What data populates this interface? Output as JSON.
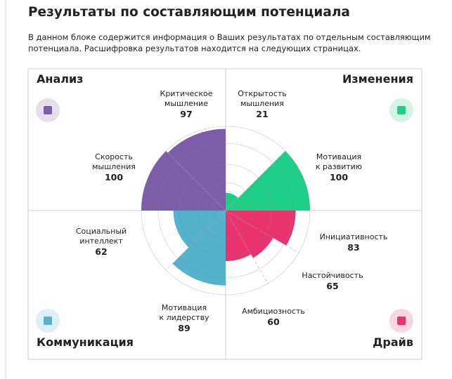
{
  "header": {
    "title": "Результаты по составляющим потенциала",
    "description": [
      "В данном блоке содержится информация о Ваших результатах по отдельным составляющим",
      "потенциала. Расшифровка результатов находится на следующих страницах."
    ]
  },
  "chart_data": {
    "type": "polar-area",
    "rlim": [
      0,
      100
    ],
    "groups": [
      {
        "name": "Изменения",
        "color": "#1fcf87",
        "items": [
          {
            "label": [
              "Открытость",
              "мышления"
            ],
            "value": 21
          },
          {
            "label": [
              "Мотивация",
              "к развитию"
            ],
            "value": 100
          }
        ]
      },
      {
        "name": "Драйв",
        "color": "#e8336f",
        "items": [
          {
            "label": [
              "Инициативность"
            ],
            "value": 83
          },
          {
            "label": [
              "Настойчивость"
            ],
            "value": 65
          },
          {
            "label": [
              "Амбициозность"
            ],
            "value": 60
          }
        ]
      },
      {
        "name": "Коммуникация",
        "color": "#54b2cc",
        "items": [
          {
            "label": [
              "Мотивация",
              "к лидерству"
            ],
            "value": 89
          },
          {
            "label": [
              "Социальный",
              "интеллект"
            ],
            "value": 62
          }
        ]
      },
      {
        "name": "Анализ",
        "color": "#7b5ea7",
        "items": [
          {
            "label": [
              "Скорость",
              "мышления"
            ],
            "value": 100
          },
          {
            "label": [
              "Критическое",
              "мышление"
            ],
            "value": 97
          }
        ]
      }
    ]
  }
}
